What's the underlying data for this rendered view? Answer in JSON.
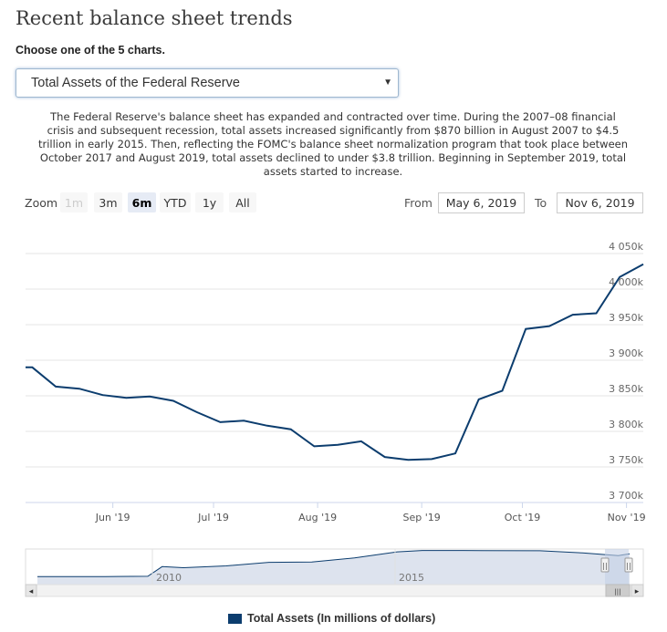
{
  "page": {
    "title": "Recent balance sheet trends",
    "subtitle": "Choose one of the 5 charts.",
    "select_value": "Total Assets of the Federal Reserve",
    "select_arrow": "▼",
    "description": "The Federal Reserve's balance sheet has expanded and contracted over time. During the 2007–08 financial crisis and subsequent recession, total assets increased significantly from $870 billion in August 2007 to $4.5 trillion in early 2015. Then, reflecting the FOMC's balance sheet normalization program that took place between October 2017 and August 2019, total assets declined to under $3.8 trillion. Beginning in September 2019, total assets started to increase."
  },
  "zoom": {
    "label": "Zoom",
    "buttons": [
      "1m",
      "3m",
      "6m",
      "YTD",
      "1y",
      "All"
    ],
    "active": "6m",
    "disabled": [
      "1m"
    ]
  },
  "range": {
    "from_label": "From",
    "from_value": "May 6, 2019",
    "to_label": "To",
    "to_value": "Nov 6, 2019"
  },
  "navigator": {
    "labels": [
      "2010",
      "2015"
    ],
    "scroll_left": "◂",
    "scroll_right": "▸",
    "scroll_grip": "|||",
    "handle_grip": "||"
  },
  "colors": {
    "series": "#0c3d6e",
    "grid": "#e6e6e6",
    "navigator_fill": "#dde3ee",
    "navigator_mask": "#c5d0e6"
  },
  "chart_data": {
    "type": "line",
    "title": "",
    "xlabel": "",
    "ylabel": "",
    "x_range": [
      "2019-05-06",
      "2019-11-06"
    ],
    "ylim": [
      3700000,
      4050000
    ],
    "y_ticks": [
      3700000,
      3750000,
      3800000,
      3850000,
      3900000,
      3950000,
      4000000,
      4050000
    ],
    "y_tick_labels": [
      "3 700k",
      "3 750k",
      "3 800k",
      "3 850k",
      "3 900k",
      "3 950k",
      "4 000k",
      "4 050k"
    ],
    "x_ticks": [
      "2019-06-01",
      "2019-07-01",
      "2019-08-01",
      "2019-09-01",
      "2019-10-01",
      "2019-11-01"
    ],
    "x_tick_labels": [
      "Jun '19",
      "Jul '19",
      "Aug '19",
      "Sep '19",
      "Oct '19",
      "Nov '19"
    ],
    "grid": true,
    "legend_position": "bottom",
    "series": [
      {
        "name": "Total Assets (In millions of dollars)",
        "color": "#0c3d6e",
        "points": [
          [
            "2019-05-06",
            3890000
          ],
          [
            "2019-05-08",
            3890000
          ],
          [
            "2019-05-15",
            3863000
          ],
          [
            "2019-05-22",
            3860000
          ],
          [
            "2019-05-29",
            3851000
          ],
          [
            "2019-06-05",
            3847000
          ],
          [
            "2019-06-12",
            3849000
          ],
          [
            "2019-06-19",
            3843000
          ],
          [
            "2019-06-26",
            3827000
          ],
          [
            "2019-07-03",
            3813000
          ],
          [
            "2019-07-10",
            3815000
          ],
          [
            "2019-07-17",
            3808000
          ],
          [
            "2019-07-24",
            3803000
          ],
          [
            "2019-07-31",
            3779000
          ],
          [
            "2019-08-07",
            3781000
          ],
          [
            "2019-08-14",
            3786000
          ],
          [
            "2019-08-21",
            3764000
          ],
          [
            "2019-08-28",
            3760000
          ],
          [
            "2019-09-04",
            3761000
          ],
          [
            "2019-09-11",
            3769000
          ],
          [
            "2019-09-18",
            3845000
          ],
          [
            "2019-09-25",
            3857000
          ],
          [
            "2019-10-02",
            3944000
          ],
          [
            "2019-10-09",
            3948000
          ],
          [
            "2019-10-16",
            3964000
          ],
          [
            "2019-10-23",
            3966000
          ],
          [
            "2019-10-30",
            4017000
          ],
          [
            "2019-11-06",
            4035000
          ]
        ]
      }
    ],
    "navigator_series": [
      [
        "2006-01-01",
        850000
      ],
      [
        "2007-08-01",
        870000
      ],
      [
        "2008-08-01",
        900000
      ],
      [
        "2008-12-01",
        2250000
      ],
      [
        "2009-06-01",
        2100000
      ],
      [
        "2010-06-01",
        2350000
      ],
      [
        "2011-06-01",
        2850000
      ],
      [
        "2012-06-01",
        2900000
      ],
      [
        "2013-06-01",
        3450000
      ],
      [
        "2014-06-01",
        4300000
      ],
      [
        "2015-01-01",
        4500000
      ],
      [
        "2016-06-01",
        4480000
      ],
      [
        "2017-10-01",
        4460000
      ],
      [
        "2018-10-01",
        4150000
      ],
      [
        "2019-08-01",
        3780000
      ],
      [
        "2019-11-06",
        4035000
      ]
    ]
  }
}
